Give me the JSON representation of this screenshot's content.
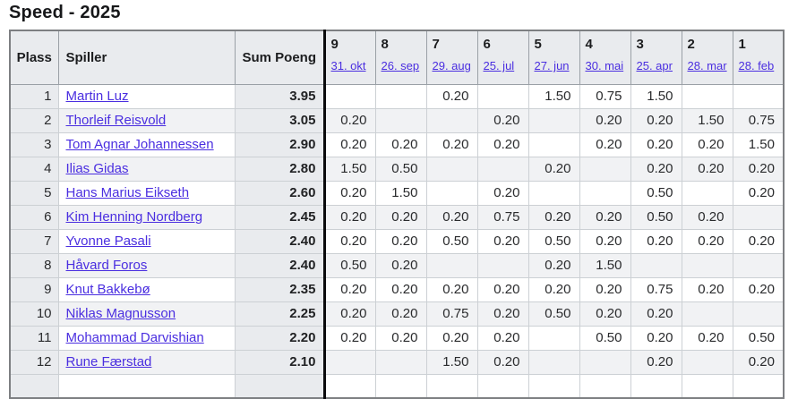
{
  "page": {
    "title": "Speed - 2025"
  },
  "colors": {
    "link": "#4a2ee0",
    "header_bg": "#e9ebee",
    "stripe_bg": "#f1f2f4",
    "divider_line": "#0a0a0c"
  },
  "table": {
    "headers": {
      "plass": "Plass",
      "spiller": "Spiller",
      "sum": "Sum Poeng"
    },
    "rounds": [
      {
        "number": "9",
        "date": "31. okt"
      },
      {
        "number": "8",
        "date": "26. sep"
      },
      {
        "number": "7",
        "date": "29. aug"
      },
      {
        "number": "6",
        "date": "25. jul"
      },
      {
        "number": "5",
        "date": "27. jun"
      },
      {
        "number": "4",
        "date": "30. mai"
      },
      {
        "number": "3",
        "date": "25. apr"
      },
      {
        "number": "2",
        "date": "28. mar"
      },
      {
        "number": "1",
        "date": "28. feb"
      }
    ],
    "rows": [
      {
        "plass": "1",
        "spiller": "Martin Luz",
        "sum": "3.95",
        "scores": [
          "",
          "",
          "0.20",
          "",
          "1.50",
          "0.75",
          "1.50",
          "",
          ""
        ]
      },
      {
        "plass": "2",
        "spiller": "Thorleif Reisvold",
        "sum": "3.05",
        "scores": [
          "0.20",
          "",
          "",
          "0.20",
          "",
          "0.20",
          "0.20",
          "1.50",
          "0.75"
        ]
      },
      {
        "plass": "3",
        "spiller": "Tom Agnar Johannessen",
        "sum": "2.90",
        "scores": [
          "0.20",
          "0.20",
          "0.20",
          "0.20",
          "",
          "0.20",
          "0.20",
          "0.20",
          "1.50"
        ]
      },
      {
        "plass": "4",
        "spiller": "Ilias Gidas",
        "sum": "2.80",
        "scores": [
          "1.50",
          "0.50",
          "",
          "",
          "0.20",
          "",
          "0.20",
          "0.20",
          "0.20"
        ]
      },
      {
        "plass": "5",
        "spiller": "Hans Marius Eikseth",
        "sum": "2.60",
        "scores": [
          "0.20",
          "1.50",
          "",
          "0.20",
          "",
          "",
          "0.50",
          "",
          "0.20"
        ]
      },
      {
        "plass": "6",
        "spiller": "Kim Henning Nordberg",
        "sum": "2.45",
        "scores": [
          "0.20",
          "0.20",
          "0.20",
          "0.75",
          "0.20",
          "0.20",
          "0.50",
          "0.20",
          ""
        ]
      },
      {
        "plass": "7",
        "spiller": "Yvonne Pasali",
        "sum": "2.40",
        "scores": [
          "0.20",
          "0.20",
          "0.50",
          "0.20",
          "0.50",
          "0.20",
          "0.20",
          "0.20",
          "0.20"
        ]
      },
      {
        "plass": "8",
        "spiller": "Håvard Foros",
        "sum": "2.40",
        "scores": [
          "0.50",
          "0.20",
          "",
          "",
          "0.20",
          "1.50",
          "",
          "",
          ""
        ]
      },
      {
        "plass": "9",
        "spiller": "Knut Bakkebø",
        "sum": "2.35",
        "scores": [
          "0.20",
          "0.20",
          "0.20",
          "0.20",
          "0.20",
          "0.20",
          "0.75",
          "0.20",
          "0.20"
        ]
      },
      {
        "plass": "10",
        "spiller": "Niklas Magnusson",
        "sum": "2.25",
        "scores": [
          "0.20",
          "0.20",
          "0.75",
          "0.20",
          "0.50",
          "0.20",
          "0.20",
          "",
          ""
        ]
      },
      {
        "plass": "11",
        "spiller": "Mohammad Darvishian",
        "sum": "2.20",
        "scores": [
          "0.20",
          "0.20",
          "0.20",
          "0.20",
          "",
          "0.50",
          "0.20",
          "0.20",
          "0.50"
        ]
      },
      {
        "plass": "12",
        "spiller": "Rune Færstad",
        "sum": "2.10",
        "scores": [
          "",
          "",
          "1.50",
          "0.20",
          "",
          "",
          "0.20",
          "",
          "0.20"
        ]
      }
    ]
  }
}
